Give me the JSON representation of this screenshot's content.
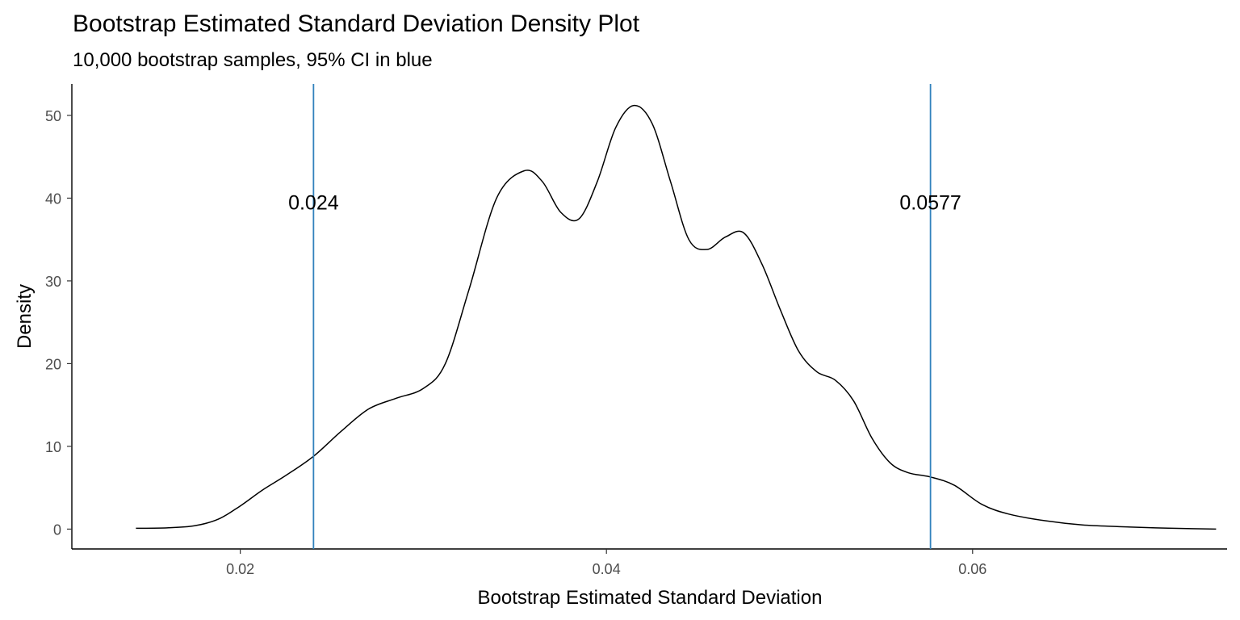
{
  "chart_data": {
    "type": "line",
    "title": "Bootstrap Estimated Standard Deviation Density Plot",
    "subtitle": "10,000 bootstrap samples, 95% CI in blue",
    "xlabel": "Bootstrap Estimated Standard Deviation",
    "ylabel": "Density",
    "xlim": [
      0.0108,
      0.0739
    ],
    "ylim": [
      -2.4,
      53.8
    ],
    "x_ticks": [
      0.02,
      0.04,
      0.06
    ],
    "x_tick_labels": [
      "0.02",
      "0.04",
      "0.06"
    ],
    "y_ticks": [
      0,
      10,
      20,
      30,
      40,
      50
    ],
    "y_tick_labels": [
      "0",
      "10",
      "20",
      "30",
      "40",
      "50"
    ],
    "grid": false,
    "series": [
      {
        "color": "#000000",
        "x": [
          0.0143,
          0.016,
          0.0175,
          0.0188,
          0.02,
          0.0212,
          0.0225,
          0.024,
          0.0255,
          0.027,
          0.0285,
          0.03,
          0.0312,
          0.0325,
          0.034,
          0.0355,
          0.0365,
          0.0375,
          0.0385,
          0.0395,
          0.0405,
          0.0415,
          0.0425,
          0.0435,
          0.0445,
          0.0455,
          0.0465,
          0.0475,
          0.0485,
          0.0495,
          0.0505,
          0.0515,
          0.0525,
          0.0535,
          0.0545,
          0.0555,
          0.0565,
          0.0577,
          0.059,
          0.0605,
          0.062,
          0.064,
          0.066,
          0.068,
          0.07,
          0.072,
          0.0733
        ],
        "y": [
          0.1,
          0.15,
          0.4,
          1.2,
          2.8,
          4.7,
          6.5,
          8.8,
          11.8,
          14.5,
          15.8,
          17.0,
          20.0,
          29.0,
          40.0,
          43.3,
          42.0,
          38.3,
          37.5,
          42.0,
          48.5,
          51.2,
          49.0,
          42.0,
          35.0,
          33.8,
          35.3,
          35.8,
          32.0,
          26.5,
          21.5,
          19.0,
          18.0,
          15.5,
          11.0,
          8.0,
          6.8,
          6.3,
          5.3,
          3.0,
          1.8,
          1.0,
          0.5,
          0.3,
          0.15,
          0.05,
          0.0
        ]
      }
    ],
    "vlines": [
      {
        "x": 0.024,
        "label": "0.024",
        "label_y": 39.5,
        "color": "#3182bd"
      },
      {
        "x": 0.0577,
        "label": "0.0577",
        "label_y": 39.5,
        "color": "#3182bd"
      }
    ]
  }
}
